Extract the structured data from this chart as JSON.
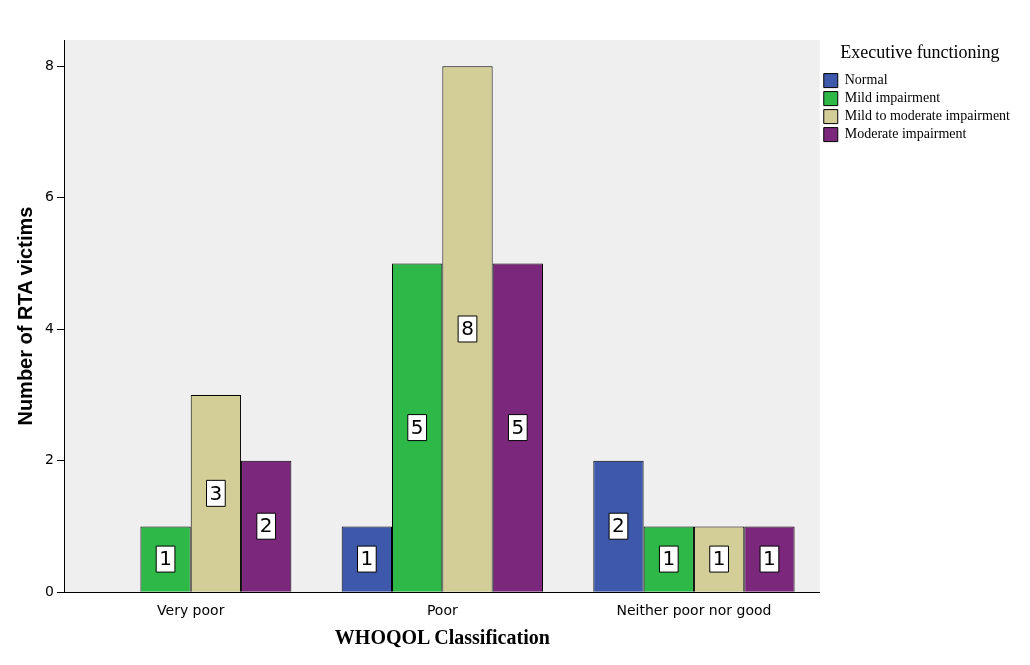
{
  "chart_data": {
    "type": "bar",
    "xlabel": "WHOQOL Classification",
    "ylabel": "Number of RTA victims",
    "legend_title": "Executive functioning",
    "categories": [
      "Very poor",
      "Poor",
      "Neither poor nor good"
    ],
    "series": [
      {
        "name": "Normal",
        "color": "#3e58ac",
        "values": [
          null,
          1,
          2
        ]
      },
      {
        "name": "Mild impairment",
        "color": "#2eb848",
        "values": [
          1,
          5,
          1
        ]
      },
      {
        "name": "Mild to moderate impairment",
        "color": "#d3ce97",
        "values": [
          3,
          8,
          1
        ]
      },
      {
        "name": "Moderate impairment",
        "color": "#7b277c",
        "values": [
          2,
          5,
          1
        ]
      }
    ],
    "ylim": [
      0,
      8.4
    ],
    "yticks": [
      0,
      2,
      4,
      6,
      8
    ],
    "grid": false,
    "legend": "top right",
    "data_labels": true
  }
}
